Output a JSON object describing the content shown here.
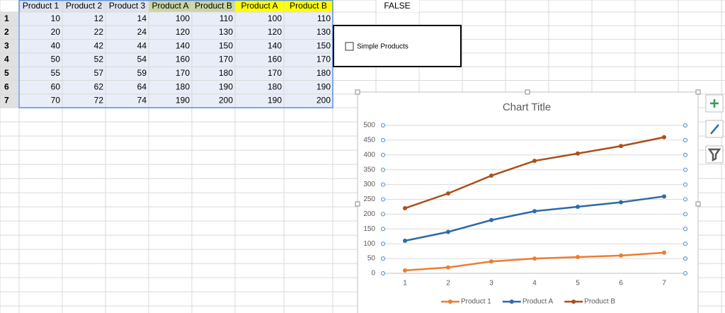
{
  "sheet": {
    "headers": [
      "Product 1",
      "Product 2",
      "Product 3",
      "Product A",
      "Product B",
      "Product A",
      "Product B"
    ],
    "row_numbers": [
      1,
      2,
      3,
      4,
      5,
      6,
      7
    ],
    "rows": [
      [
        10,
        12,
        14,
        100,
        110,
        100,
        110
      ],
      [
        20,
        22,
        24,
        120,
        130,
        120,
        130
      ],
      [
        40,
        42,
        44,
        140,
        150,
        140,
        150
      ],
      [
        50,
        52,
        54,
        160,
        170,
        160,
        170
      ],
      [
        55,
        57,
        59,
        170,
        180,
        170,
        180
      ],
      [
        60,
        62,
        64,
        180,
        190,
        180,
        190
      ],
      [
        70,
        72,
        74,
        190,
        200,
        190,
        200
      ]
    ],
    "cell_value": "FALSE",
    "checkbox_label": "Simple Products"
  },
  "chart_data": {
    "type": "line",
    "stacked": true,
    "title": "Chart Title",
    "categories": [
      1,
      2,
      3,
      4,
      5,
      6,
      7
    ],
    "series": [
      {
        "name": "Product 1",
        "color": "#ed7d31",
        "values": [
          10,
          20,
          40,
          50,
          55,
          60,
          70
        ]
      },
      {
        "name": "Product A",
        "color": "#2e6aa6",
        "values": [
          100,
          120,
          140,
          160,
          170,
          180,
          190
        ]
      },
      {
        "name": "Product B",
        "color": "#a9501d",
        "values": [
          110,
          130,
          150,
          170,
          180,
          190,
          200
        ]
      }
    ],
    "ylim": [
      0,
      500
    ],
    "yticks": [
      0,
      50,
      100,
      150,
      200,
      250,
      300,
      350,
      400,
      450,
      500
    ],
    "grid": true,
    "legend": "bottom"
  }
}
